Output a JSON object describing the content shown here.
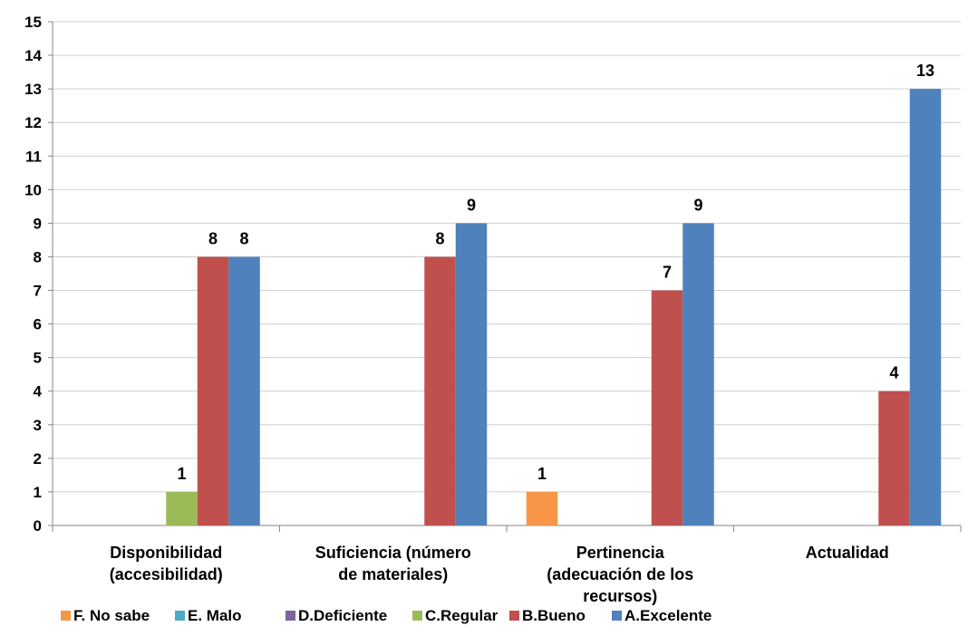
{
  "chart_data": {
    "type": "bar",
    "categories": [
      [
        "Disponibilidad",
        "(accesibilidad)"
      ],
      [
        "Suficiencia (número",
        "de materiales)"
      ],
      [
        "Pertinencia",
        "(adecuación de los",
        "recursos)"
      ],
      [
        "Actualidad"
      ]
    ],
    "ylim": [
      0,
      15
    ],
    "yticks": [
      0,
      1,
      2,
      3,
      4,
      5,
      6,
      7,
      8,
      9,
      10,
      11,
      12,
      13,
      14,
      15
    ],
    "grid": true,
    "legend_position": "bottom",
    "series": [
      {
        "name": "F. No sabe",
        "color": "#F79646",
        "values": [
          0,
          0,
          1,
          0
        ]
      },
      {
        "name": "E. Malo",
        "color": "#4BACC6",
        "values": [
          0,
          0,
          0,
          0
        ]
      },
      {
        "name": "D.Deficiente",
        "color": "#8064A2",
        "values": [
          0,
          0,
          0,
          0
        ]
      },
      {
        "name": "C.Regular",
        "color": "#9BBB59",
        "values": [
          1,
          0,
          0,
          0
        ]
      },
      {
        "name": "B.Bueno",
        "color": "#C0504D",
        "values": [
          8,
          8,
          7,
          4
        ]
      },
      {
        "name": "A.Excelente",
        "color": "#4F81BD",
        "values": [
          8,
          9,
          9,
          13
        ]
      }
    ]
  }
}
